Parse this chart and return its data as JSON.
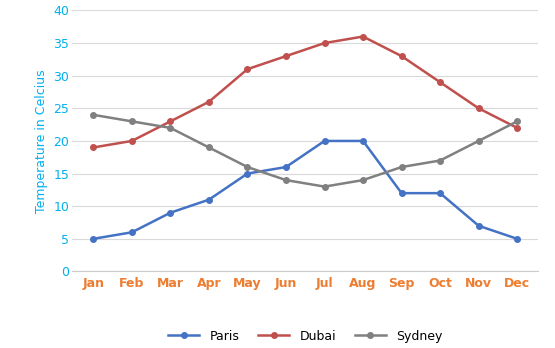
{
  "months": [
    "Jan",
    "Feb",
    "Mar",
    "Apr",
    "May",
    "Jun",
    "Jul",
    "Aug",
    "Sep",
    "Oct",
    "Nov",
    "Dec"
  ],
  "paris": [
    5,
    6,
    9,
    11,
    15,
    16,
    20,
    20,
    12,
    12,
    7,
    5
  ],
  "dubai": [
    19,
    20,
    23,
    26,
    31,
    33,
    35,
    36,
    33,
    29,
    25,
    22
  ],
  "sydney": [
    24,
    23,
    22,
    19,
    16,
    14,
    13,
    14,
    16,
    17,
    20,
    23
  ],
  "paris_color": "#4472C4",
  "dubai_color": "#C0504D",
  "sydney_color": "#808080",
  "xlabel_color": "#ED7D31",
  "yaxis_color": "#00B0F0",
  "ylabel": "Temperature in Celcius",
  "ylim": [
    0,
    40
  ],
  "yticks": [
    0,
    5,
    10,
    15,
    20,
    25,
    30,
    35,
    40
  ],
  "ytick_labels": [
    "0",
    "5",
    "10",
    "15",
    "20",
    "25",
    "30",
    "35",
    "40"
  ],
  "grid_color": "#D9D9D9",
  "background_color": "#FFFFFF",
  "marker": "o",
  "linewidth": 1.8,
  "markersize": 4
}
